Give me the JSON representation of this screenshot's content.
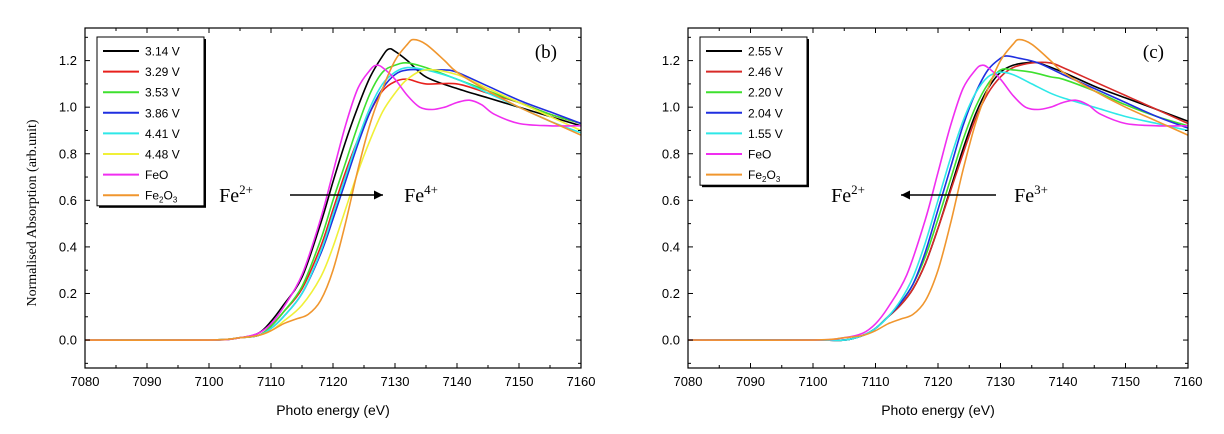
{
  "chart_data": [
    {
      "type": "line",
      "panel": "(b)",
      "xlabel": "Photo energy (eV)",
      "ylabel": "Normalised Absorption (arb.unit)",
      "xlim": [
        7080,
        7160
      ],
      "ylim": [
        -0.12,
        1.34
      ],
      "xticks": [
        7080,
        7090,
        7100,
        7110,
        7120,
        7130,
        7140,
        7150,
        7160
      ],
      "yticks": [
        0.0,
        0.2,
        0.4,
        0.6,
        0.8,
        1.0,
        1.2
      ],
      "legend_position": "top-left",
      "annotation": {
        "from": "Fe",
        "from_sup": "2+",
        "to": "Fe",
        "to_sup": "4+",
        "arrow": "right"
      },
      "series": [
        {
          "name": "3.14 V",
          "color": "#000000",
          "x": [
            7080,
            7100,
            7105,
            7108,
            7110,
            7112,
            7115,
            7118,
            7120,
            7122,
            7124,
            7126,
            7128,
            7129,
            7130,
            7132,
            7135,
            7140,
            7145,
            7150,
            7155,
            7160
          ],
          "y": [
            0.0,
            0.0,
            0.01,
            0.03,
            0.08,
            0.15,
            0.27,
            0.5,
            0.68,
            0.85,
            1.0,
            1.13,
            1.22,
            1.25,
            1.24,
            1.2,
            1.13,
            1.08,
            1.04,
            1.0,
            0.96,
            0.92
          ]
        },
        {
          "name": "3.29 V",
          "color": "#e8201c",
          "x": [
            7080,
            7100,
            7105,
            7108,
            7110,
            7112,
            7115,
            7118,
            7120,
            7122,
            7124,
            7126,
            7128,
            7130,
            7132,
            7135,
            7140,
            7145,
            7150,
            7155,
            7160
          ],
          "y": [
            0.0,
            0.0,
            0.01,
            0.02,
            0.06,
            0.12,
            0.22,
            0.4,
            0.56,
            0.72,
            0.86,
            0.98,
            1.07,
            1.11,
            1.12,
            1.1,
            1.1,
            1.06,
            1.02,
            0.97,
            0.93
          ]
        },
        {
          "name": "3.53 V",
          "color": "#3ee02e",
          "x": [
            7080,
            7100,
            7105,
            7108,
            7110,
            7112,
            7115,
            7118,
            7120,
            7122,
            7124,
            7126,
            7128,
            7130,
            7132,
            7135,
            7140,
            7145,
            7150,
            7155,
            7160
          ],
          "y": [
            0.0,
            0.0,
            0.01,
            0.02,
            0.06,
            0.12,
            0.23,
            0.43,
            0.6,
            0.76,
            0.92,
            1.06,
            1.15,
            1.18,
            1.19,
            1.17,
            1.12,
            1.07,
            1.02,
            0.97,
            0.93
          ]
        },
        {
          "name": "3.86 V",
          "color": "#1f2fe0",
          "x": [
            7080,
            7100,
            7105,
            7108,
            7110,
            7112,
            7115,
            7118,
            7120,
            7122,
            7124,
            7126,
            7128,
            7130,
            7132,
            7135,
            7138,
            7140,
            7145,
            7150,
            7155,
            7160
          ],
          "y": [
            0.0,
            0.0,
            0.01,
            0.02,
            0.05,
            0.1,
            0.2,
            0.37,
            0.52,
            0.68,
            0.84,
            0.98,
            1.08,
            1.14,
            1.16,
            1.16,
            1.16,
            1.15,
            1.09,
            1.03,
            0.98,
            0.93
          ]
        },
        {
          "name": "4.41 V",
          "color": "#2ee8e8",
          "x": [
            7080,
            7100,
            7105,
            7108,
            7110,
            7112,
            7115,
            7118,
            7120,
            7122,
            7124,
            7126,
            7128,
            7130,
            7132,
            7135,
            7140,
            7145,
            7150,
            7155,
            7160
          ],
          "y": [
            0.0,
            0.0,
            0.01,
            0.02,
            0.05,
            0.1,
            0.2,
            0.38,
            0.54,
            0.7,
            0.86,
            1.0,
            1.1,
            1.15,
            1.17,
            1.16,
            1.12,
            1.06,
            1.0,
            0.94,
            0.89
          ]
        },
        {
          "name": "4.48 V",
          "color": "#f0f038",
          "x": [
            7080,
            7100,
            7105,
            7108,
            7110,
            7112,
            7115,
            7118,
            7120,
            7122,
            7124,
            7126,
            7128,
            7130,
            7132,
            7135,
            7140,
            7145,
            7150,
            7155,
            7160
          ],
          "y": [
            0.0,
            0.0,
            0.01,
            0.02,
            0.04,
            0.08,
            0.15,
            0.27,
            0.4,
            0.56,
            0.72,
            0.86,
            0.98,
            1.06,
            1.12,
            1.16,
            1.14,
            1.08,
            1.02,
            0.96,
            0.9
          ]
        },
        {
          "name": "FeO",
          "color": "#f02ef0",
          "x": [
            7080,
            7100,
            7105,
            7108,
            7110,
            7112,
            7115,
            7118,
            7120,
            7122,
            7124,
            7126,
            7127,
            7128,
            7130,
            7132,
            7134,
            7136,
            7138,
            7140,
            7142,
            7144,
            7146,
            7150,
            7155,
            7160
          ],
          "y": [
            0.0,
            0.0,
            0.01,
            0.03,
            0.07,
            0.14,
            0.28,
            0.52,
            0.72,
            0.92,
            1.08,
            1.16,
            1.18,
            1.17,
            1.12,
            1.05,
            1.0,
            0.99,
            1.0,
            1.02,
            1.03,
            1.01,
            0.97,
            0.93,
            0.92,
            0.92
          ]
        },
        {
          "name": "Fe2O3",
          "color": "#f0962e",
          "x": [
            7080,
            7100,
            7105,
            7108,
            7110,
            7112,
            7114,
            7116,
            7118,
            7120,
            7122,
            7124,
            7126,
            7128,
            7130,
            7132,
            7133,
            7135,
            7138,
            7140,
            7145,
            7150,
            7155,
            7160
          ],
          "y": [
            0.0,
            0.0,
            0.01,
            0.02,
            0.04,
            0.07,
            0.09,
            0.11,
            0.17,
            0.3,
            0.5,
            0.73,
            0.93,
            1.08,
            1.2,
            1.27,
            1.29,
            1.27,
            1.2,
            1.15,
            1.07,
            1.0,
            0.94,
            0.88
          ]
        }
      ]
    },
    {
      "type": "line",
      "panel": "(c)",
      "xlabel": "Photo energy (eV)",
      "ylabel": "",
      "xlim": [
        7080,
        7160
      ],
      "ylim": [
        -0.12,
        1.34
      ],
      "xticks": [
        7080,
        7090,
        7100,
        7110,
        7120,
        7130,
        7140,
        7150,
        7160
      ],
      "yticks": [
        0.0,
        0.2,
        0.4,
        0.6,
        0.8,
        1.0,
        1.2
      ],
      "legend_position": "top-left",
      "annotation": {
        "from": "Fe",
        "from_sup": "3+",
        "to": "Fe",
        "to_sup": "2+",
        "arrow": "left"
      },
      "series": [
        {
          "name": "2.55 V",
          "color": "#000000",
          "x": [
            7080,
            7100,
            7105,
            7108,
            7110,
            7112,
            7114,
            7116,
            7118,
            7120,
            7122,
            7124,
            7126,
            7128,
            7130,
            7132,
            7134,
            7136,
            7140,
            7145,
            7150,
            7155,
            7160
          ],
          "y": [
            0.0,
            0.0,
            0.0,
            0.02,
            0.05,
            0.1,
            0.15,
            0.22,
            0.33,
            0.48,
            0.65,
            0.82,
            0.97,
            1.08,
            1.15,
            1.18,
            1.19,
            1.19,
            1.15,
            1.09,
            1.04,
            0.99,
            0.94
          ]
        },
        {
          "name": "2.46 V",
          "color": "#d82a28",
          "x": [
            7080,
            7100,
            7105,
            7108,
            7110,
            7112,
            7114,
            7116,
            7118,
            7120,
            7122,
            7124,
            7126,
            7128,
            7130,
            7132,
            7135,
            7138,
            7140,
            7145,
            7150,
            7155,
            7160
          ],
          "y": [
            0.0,
            0.0,
            0.0,
            0.02,
            0.05,
            0.1,
            0.15,
            0.22,
            0.33,
            0.48,
            0.64,
            0.8,
            0.95,
            1.06,
            1.13,
            1.17,
            1.19,
            1.19,
            1.17,
            1.11,
            1.05,
            0.99,
            0.93
          ]
        },
        {
          "name": "2.20 V",
          "color": "#3ee02e",
          "x": [
            7080,
            7100,
            7105,
            7108,
            7110,
            7112,
            7114,
            7116,
            7118,
            7120,
            7122,
            7124,
            7126,
            7128,
            7130,
            7132,
            7135,
            7138,
            7140,
            7145,
            7150,
            7155,
            7160
          ],
          "y": [
            0.0,
            0.0,
            0.0,
            0.02,
            0.05,
            0.1,
            0.16,
            0.24,
            0.36,
            0.52,
            0.69,
            0.86,
            1.0,
            1.1,
            1.16,
            1.16,
            1.15,
            1.13,
            1.12,
            1.07,
            1.01,
            0.96,
            0.92
          ]
        },
        {
          "name": "2.04 V",
          "color": "#1f2fe0",
          "x": [
            7080,
            7100,
            7105,
            7108,
            7110,
            7112,
            7114,
            7116,
            7118,
            7120,
            7122,
            7124,
            7126,
            7128,
            7130,
            7131,
            7133,
            7136,
            7140,
            7145,
            7150,
            7155,
            7160
          ],
          "y": [
            0.0,
            0.0,
            0.0,
            0.02,
            0.05,
            0.1,
            0.16,
            0.24,
            0.38,
            0.56,
            0.74,
            0.92,
            1.06,
            1.16,
            1.21,
            1.22,
            1.21,
            1.19,
            1.14,
            1.08,
            1.02,
            0.96,
            0.91
          ]
        },
        {
          "name": "1.55 V",
          "color": "#2ee8e8",
          "x": [
            7080,
            7100,
            7105,
            7108,
            7110,
            7112,
            7114,
            7116,
            7118,
            7120,
            7122,
            7124,
            7126,
            7128,
            7130,
            7132,
            7135,
            7138,
            7140,
            7145,
            7150,
            7155,
            7160
          ],
          "y": [
            0.0,
            0.0,
            0.0,
            0.02,
            0.05,
            0.1,
            0.17,
            0.27,
            0.42,
            0.6,
            0.78,
            0.94,
            1.06,
            1.13,
            1.15,
            1.14,
            1.1,
            1.06,
            1.04,
            1.0,
            0.96,
            0.93,
            0.9
          ]
        },
        {
          "name": "FeO",
          "color": "#f02ef0",
          "x": [
            7080,
            7100,
            7105,
            7108,
            7110,
            7112,
            7115,
            7118,
            7120,
            7122,
            7124,
            7126,
            7127,
            7128,
            7130,
            7132,
            7134,
            7136,
            7138,
            7140,
            7142,
            7144,
            7146,
            7150,
            7155,
            7160
          ],
          "y": [
            0.0,
            0.0,
            0.01,
            0.03,
            0.07,
            0.14,
            0.28,
            0.52,
            0.72,
            0.92,
            1.08,
            1.16,
            1.18,
            1.17,
            1.12,
            1.05,
            1.0,
            0.99,
            1.0,
            1.02,
            1.03,
            1.01,
            0.97,
            0.93,
            0.92,
            0.92
          ]
        },
        {
          "name": "Fe2O3",
          "color": "#f0962e",
          "x": [
            7080,
            7100,
            7105,
            7108,
            7110,
            7112,
            7114,
            7116,
            7118,
            7120,
            7122,
            7124,
            7126,
            7128,
            7130,
            7132,
            7133,
            7135,
            7138,
            7140,
            7145,
            7150,
            7155,
            7160
          ],
          "y": [
            0.0,
            0.0,
            0.01,
            0.02,
            0.04,
            0.07,
            0.09,
            0.11,
            0.17,
            0.3,
            0.5,
            0.73,
            0.93,
            1.08,
            1.2,
            1.27,
            1.29,
            1.27,
            1.2,
            1.15,
            1.07,
            1.0,
            0.94,
            0.88
          ]
        }
      ]
    }
  ]
}
